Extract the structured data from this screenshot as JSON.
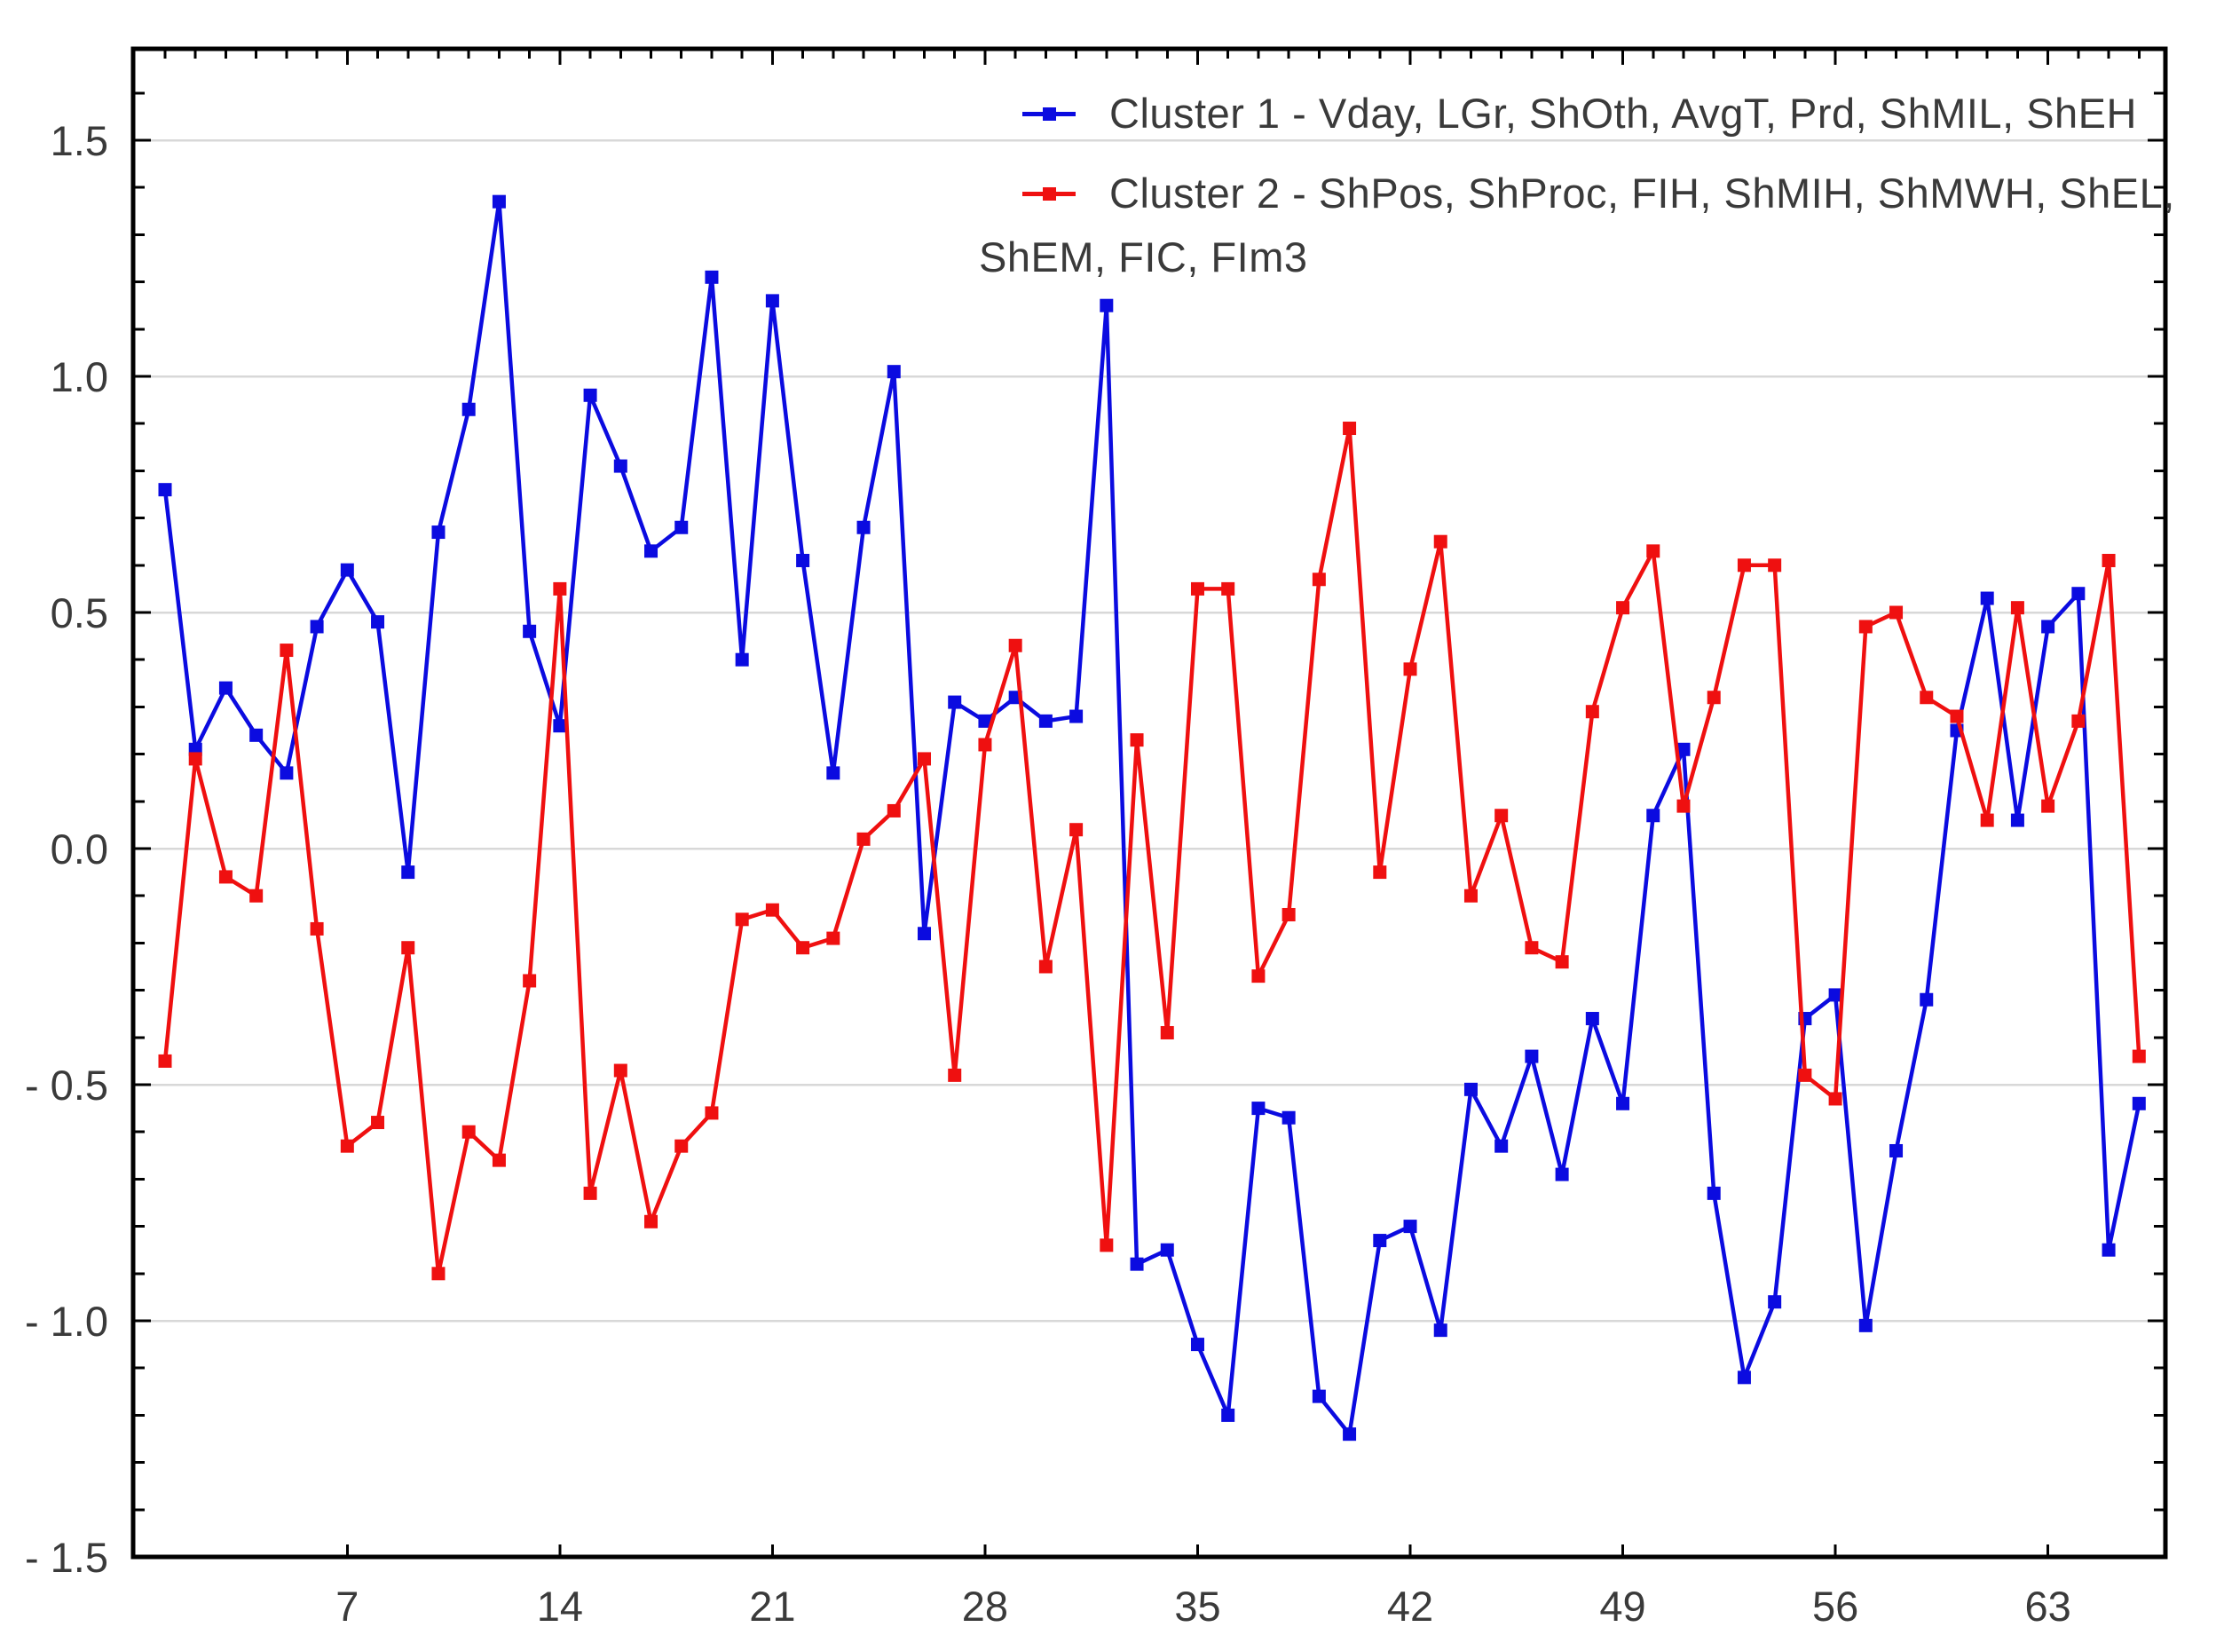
{
  "chart_data": {
    "type": "line",
    "title": "",
    "xlabel": "",
    "ylabel": "",
    "grid": "horizontal-light-gray",
    "legend_position": "top-center-inside",
    "x_start": 1,
    "x_step": 1,
    "x_count": 66,
    "xlim": [
      0,
      66.9
    ],
    "ylim": [
      -1.5,
      1.69
    ],
    "x_ticks": [
      7,
      14,
      21,
      28,
      35,
      42,
      49,
      56,
      63
    ],
    "x_tick_labels": [
      "7",
      "14",
      "21",
      "28",
      "35",
      "42",
      "49",
      "56",
      "63"
    ],
    "y_ticks": [
      1.5,
      1.0,
      0.5,
      0.0,
      -0.5,
      -1.0,
      -1.5
    ],
    "y_tick_labels": [
      "1.5",
      "1.0",
      "0.5",
      "0.0",
      "- 0.5",
      "- 1.0",
      "- 1.5"
    ],
    "y_minor_tick_step": 0.1,
    "x_top_minor_tick_step": 1,
    "series": [
      {
        "name": "Cluster 1",
        "legend_label": "Cluster 1 - Vday, LGr, ShOth, AvgT, Prd, ShMIL, ShEH",
        "color": "#0b0be0",
        "marker": "square",
        "values": [
          0.76,
          0.21,
          0.34,
          0.24,
          0.16,
          0.47,
          0.59,
          0.48,
          -0.05,
          0.67,
          0.93,
          1.37,
          0.46,
          0.26,
          0.96,
          0.81,
          0.63,
          0.68,
          1.21,
          0.4,
          1.16,
          0.61,
          0.16,
          0.68,
          1.01,
          -0.18,
          0.31,
          0.27,
          0.32,
          0.27,
          0.28,
          1.15,
          -0.88,
          -0.85,
          -1.05,
          -1.2,
          -0.55,
          -0.57,
          -1.16,
          -1.24,
          -0.83,
          -0.8,
          -1.02,
          -0.51,
          -0.63,
          -0.44,
          -0.69,
          -0.36,
          -0.54,
          0.07,
          0.21,
          -0.73,
          -1.12,
          -0.96,
          -0.36,
          -0.31,
          -1.01,
          -0.64,
          -0.32,
          0.25,
          0.53,
          0.06,
          0.47,
          0.54,
          -0.85,
          -0.54
        ]
      },
      {
        "name": "Cluster 2",
        "legend_label": "Cluster 2 - ShPos, ShProc, FIH, ShMIH, ShMWH, ShEL,",
        "legend_label_cont": "ShEM, FIC, FIm3",
        "color": "#ef1010",
        "marker": "square",
        "values": [
          -0.45,
          0.19,
          -0.06,
          -0.1,
          0.42,
          -0.17,
          -0.63,
          -0.58,
          -0.21,
          -0.9,
          -0.6,
          -0.66,
          -0.28,
          0.55,
          -0.73,
          -0.47,
          -0.79,
          -0.63,
          -0.56,
          -0.15,
          -0.13,
          -0.21,
          -0.19,
          0.02,
          0.08,
          0.19,
          -0.48,
          0.22,
          0.43,
          -0.25,
          0.04,
          -0.84,
          0.23,
          -0.39,
          0.55,
          0.55,
          -0.27,
          -0.14,
          0.57,
          0.89,
          -0.05,
          0.38,
          0.65,
          -0.1,
          0.07,
          -0.21,
          -0.24,
          0.29,
          0.51,
          0.63,
          0.09,
          0.32,
          0.6,
          0.6,
          -0.48,
          -0.53,
          0.47,
          0.5,
          0.32,
          0.28,
          0.06,
          0.51,
          0.09,
          0.27,
          0.61,
          -0.44
        ]
      }
    ],
    "colors": {
      "grid": "#d8d8d8",
      "axis": "#000000",
      "tick": "#000000",
      "label_text": "#3a3a3a",
      "background": "#ffffff"
    }
  }
}
